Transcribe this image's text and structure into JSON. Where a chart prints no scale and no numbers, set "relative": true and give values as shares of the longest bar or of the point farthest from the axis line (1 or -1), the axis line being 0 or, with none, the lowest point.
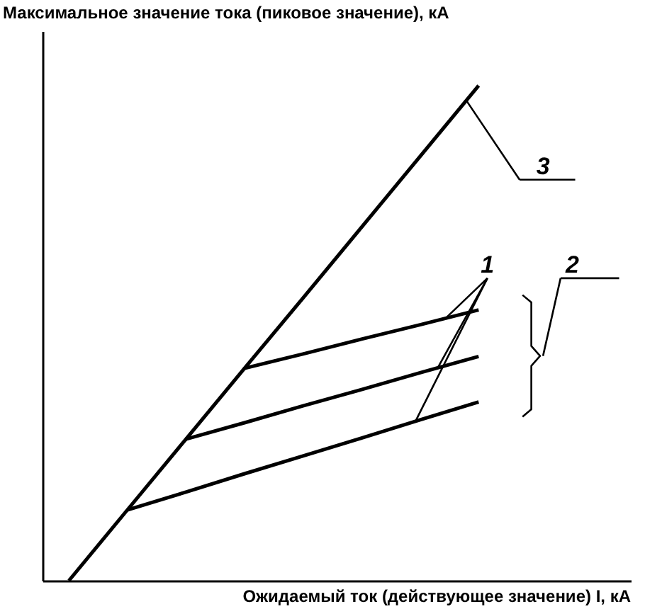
{
  "chart_data": {
    "type": "line",
    "relative": true,
    "xlabel": "Ожидаемый ток (действующее значение) I, кА",
    "ylabel": "Максимальное значение тока (пиковое значение), кА",
    "grid": false,
    "marker": "none",
    "line_style": "solid",
    "categories": [
      null,
      null,
      null,
      null,
      null,
      null,
      null,
      null
    ],
    "series": [
      {
        "color": "#000000",
        "values": [
          0,
          0.143,
          0.286,
          0.429,
          0.571,
          0.714,
          0.857,
          1.0
        ]
      },
      {
        "color": "#000000",
        "values": [
          null,
          0.143,
          0.179,
          0.216,
          0.252,
          0.288,
          0.325,
          0.361
        ]
      },
      {
        "color": "#000000",
        "values": [
          null,
          null,
          0.286,
          0.319,
          0.353,
          0.386,
          0.42,
          0.453
        ]
      },
      {
        "color": "#000000",
        "values": [
          null,
          null,
          null,
          0.429,
          0.458,
          0.488,
          0.517,
          0.547
        ]
      }
    ],
    "annotations": [
      "3",
      "1",
      "2"
    ]
  }
}
